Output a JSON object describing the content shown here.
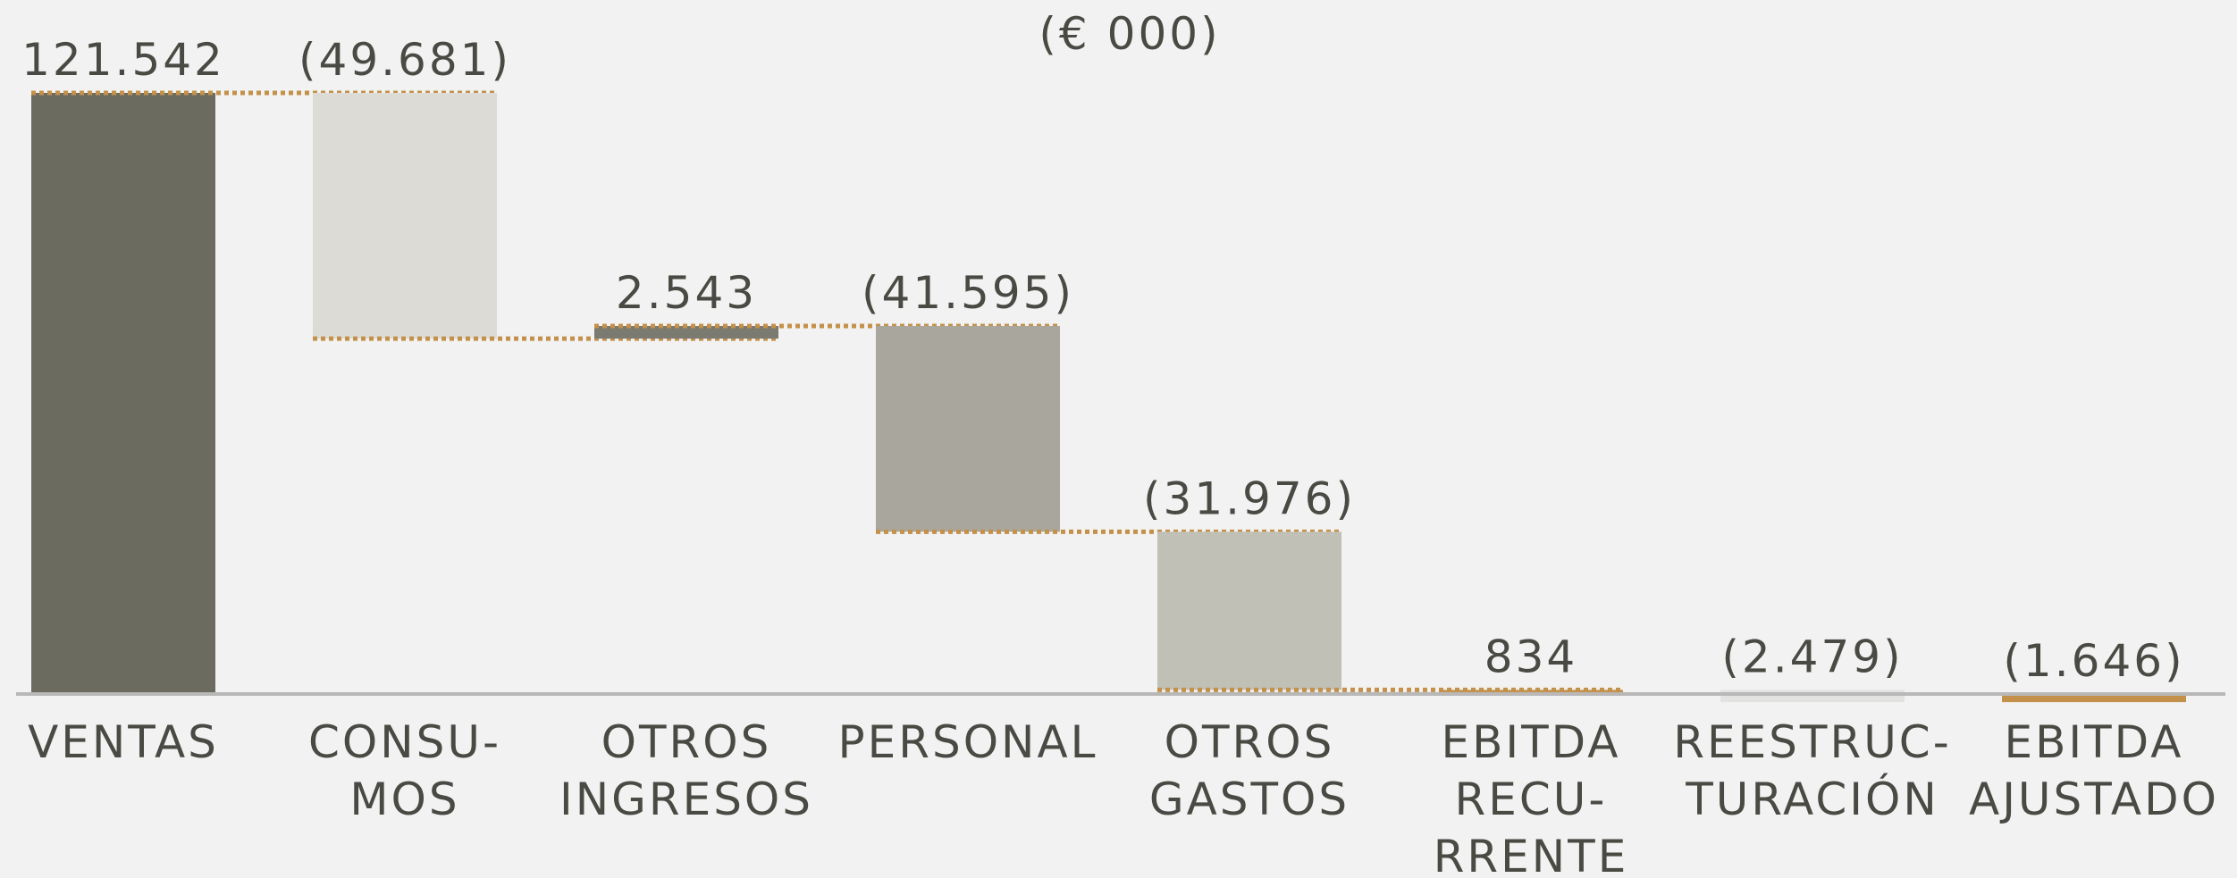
{
  "chart_data": {
    "type": "waterfall",
    "title": "(€ 000)",
    "categories": [
      [
        "VENTAS"
      ],
      [
        "CONSU-",
        "MOS"
      ],
      [
        "OTROS",
        "INGRESOS"
      ],
      [
        "PERSONAL"
      ],
      [
        "OTROS",
        "GASTOS"
      ],
      [
        "EBITDA",
        "RECU-",
        "RRENTE"
      ],
      [
        "REESTRUC-",
        "TURACIÓN"
      ],
      [
        "EBITDA",
        "AJUSTADO"
      ]
    ],
    "measure": [
      "absolute",
      "relative",
      "relative",
      "relative",
      "relative",
      "total",
      "relative",
      "total"
    ],
    "values": [
      121542,
      -49681,
      2543,
      -41595,
      -31976,
      834,
      -2479,
      -1646
    ],
    "value_labels": [
      "121.542",
      "(49.681)",
      "2.543",
      "(41.595)",
      "(31.976)",
      "834",
      "(2.479)",
      "(1.646)"
    ],
    "colors": [
      "#6b6b60",
      "#dcdbd6",
      "#7a7a70",
      "#a9a69e",
      "#c0c0b6",
      "#c4914a",
      "#e2e2e0",
      "#c4914a"
    ],
    "connector_color": "#c4914a"
  }
}
